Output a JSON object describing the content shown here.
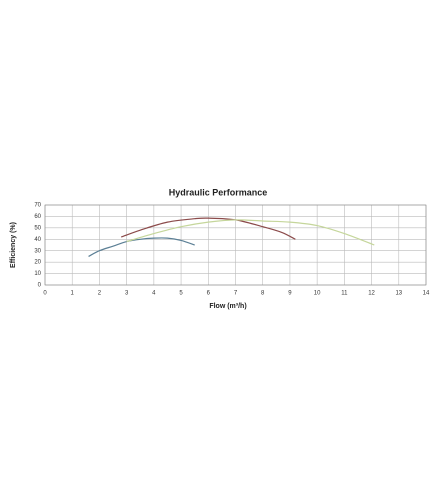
{
  "chart_data": {
    "type": "line",
    "title": "Hydraulic Performance",
    "x_label": "Flow (m³/h)",
    "y_label": "Efficiency (%)",
    "xlim": [
      0,
      14
    ],
    "xticks": [
      0,
      1,
      2,
      3,
      4,
      5,
      6,
      7,
      8,
      9,
      10,
      11,
      12,
      13,
      14
    ],
    "ylim": [
      0,
      70
    ],
    "yticks": [
      0,
      10,
      20,
      30,
      40,
      50,
      60,
      70
    ],
    "grid": true,
    "series": [
      {
        "color": "#5b7f95",
        "x": [
          1.6,
          2.0,
          2.5,
          3.0,
          3.5,
          4.0,
          4.5,
          5.0,
          5.5
        ],
        "values": [
          25,
          30,
          34,
          38,
          40,
          41,
          41,
          39,
          35
        ]
      },
      {
        "color": "#8b4a4a",
        "x": [
          2.8,
          3.5,
          4.5,
          5.5,
          6.0,
          7.0,
          8.0,
          8.7,
          9.2
        ],
        "values": [
          42,
          48,
          55,
          58,
          58.5,
          57,
          51,
          46,
          40
        ]
      },
      {
        "color": "#c5d69b",
        "x": [
          3.0,
          4.0,
          5.0,
          6.0,
          7.0,
          8.0,
          9.0,
          10.0,
          11.0,
          12.1
        ],
        "values": [
          38,
          45,
          51,
          55,
          57,
          56,
          55,
          52,
          45,
          35
        ]
      }
    ]
  }
}
